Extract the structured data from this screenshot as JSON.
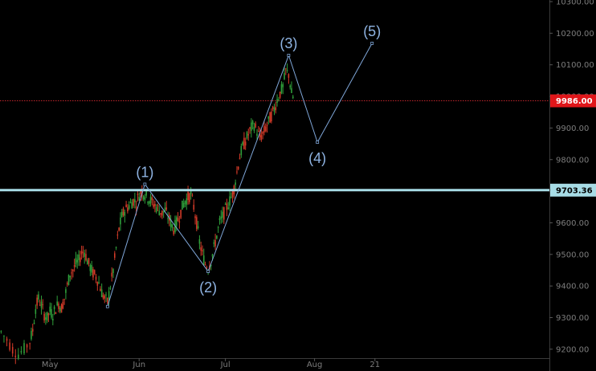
{
  "chart_data": {
    "type": "candlestick",
    "ylim": [
      9180,
      10310
    ],
    "y_ticks": [
      "9200.00",
      "9300.00",
      "9400.00",
      "9500.00",
      "9600.00",
      "9700.00",
      "9800.00",
      "9900.00",
      "10000.00",
      "10100.00",
      "10200.00",
      "10300.00"
    ],
    "x_ticks": [
      {
        "label": "May",
        "day": 3
      },
      {
        "label": "Jun",
        "day": 34
      },
      {
        "label": "Jul",
        "day": 64
      },
      {
        "label": "Aug",
        "day": 95
      },
      {
        "label": "21",
        "day": 116
      }
    ],
    "xlim": [
      -14,
      176
    ],
    "price_tags": [
      {
        "label": "9986.00",
        "value": 9986,
        "color": "#e0161a",
        "text_color": "#ffffff"
      },
      {
        "label": "9703.36",
        "value": 9703.36,
        "color": "#a7dce6",
        "text_color": "#000000"
      }
    ],
    "hlines": [
      {
        "value": 9986,
        "color": "#c0252b",
        "style": "dotted"
      },
      {
        "value": 9703.36,
        "color": "#a7dce6",
        "style": "solid"
      }
    ],
    "wave_points": [
      {
        "label": "",
        "day": 23,
        "price": 9335
      },
      {
        "label": "(1)",
        "day": 36,
        "price": 9722
      },
      {
        "label": "(2)",
        "day": 58,
        "price": 9446
      },
      {
        "label": "(3)",
        "day": 86,
        "price": 10130
      },
      {
        "label": "(4)",
        "day": 96,
        "price": 9855
      },
      {
        "label": "(5)",
        "day": 115,
        "price": 10168
      }
    ],
    "price_path": [
      [
        -14,
        9255
      ],
      [
        -12,
        9230
      ],
      [
        -10,
        9200
      ],
      [
        -8,
        9185
      ],
      [
        -6,
        9200
      ],
      [
        -4,
        9225
      ],
      [
        -3,
        9260
      ],
      [
        -2,
        9330
      ],
      [
        -1,
        9360
      ],
      [
        0,
        9340
      ],
      [
        1,
        9310
      ],
      [
        2,
        9300
      ],
      [
        3,
        9320
      ],
      [
        4,
        9310
      ],
      [
        5,
        9330
      ],
      [
        6,
        9345
      ],
      [
        7,
        9330
      ],
      [
        8,
        9360
      ],
      [
        9,
        9400
      ],
      [
        10,
        9440
      ],
      [
        11,
        9450
      ],
      [
        12,
        9470
      ],
      [
        13,
        9480
      ],
      [
        14,
        9505
      ],
      [
        15,
        9510
      ],
      [
        16,
        9480
      ],
      [
        17,
        9460
      ],
      [
        18,
        9440
      ],
      [
        19,
        9430
      ],
      [
        20,
        9410
      ],
      [
        21,
        9380
      ],
      [
        22,
        9360
      ],
      [
        23,
        9350
      ],
      [
        24,
        9400
      ],
      [
        25,
        9450
      ],
      [
        26,
        9520
      ],
      [
        27,
        9580
      ],
      [
        28,
        9620
      ],
      [
        29,
        9640
      ],
      [
        30,
        9650
      ],
      [
        31,
        9660
      ],
      [
        32,
        9670
      ],
      [
        33,
        9665
      ],
      [
        34,
        9690
      ],
      [
        35,
        9700
      ],
      [
        36,
        9690
      ],
      [
        37,
        9680
      ],
      [
        38,
        9670
      ],
      [
        39,
        9660
      ],
      [
        40,
        9650
      ],
      [
        41,
        9640
      ],
      [
        42,
        9630
      ],
      [
        43,
        9640
      ],
      [
        44,
        9620
      ],
      [
        45,
        9600
      ],
      [
        46,
        9580
      ],
      [
        47,
        9600
      ],
      [
        48,
        9620
      ],
      [
        49,
        9650
      ],
      [
        50,
        9670
      ],
      [
        51,
        9680
      ],
      [
        52,
        9690
      ],
      [
        53,
        9650
      ],
      [
        54,
        9600
      ],
      [
        55,
        9540
      ],
      [
        56,
        9500
      ],
      [
        57,
        9470
      ],
      [
        58,
        9460
      ],
      [
        59,
        9480
      ],
      [
        60,
        9520
      ],
      [
        61,
        9560
      ],
      [
        62,
        9600
      ],
      [
        63,
        9620
      ],
      [
        64,
        9640
      ],
      [
        65,
        9660
      ],
      [
        66,
        9680
      ],
      [
        67,
        9710
      ],
      [
        68,
        9760
      ],
      [
        69,
        9810
      ],
      [
        70,
        9840
      ],
      [
        71,
        9860
      ],
      [
        72,
        9880
      ],
      [
        73,
        9900
      ],
      [
        74,
        9910
      ],
      [
        75,
        9890
      ],
      [
        76,
        9870
      ],
      [
        77,
        9880
      ],
      [
        78,
        9900
      ],
      [
        79,
        9920
      ],
      [
        80,
        9940
      ],
      [
        81,
        9960
      ],
      [
        82,
        9990
      ],
      [
        83,
        10010
      ],
      [
        84,
        10030
      ],
      [
        85,
        10080
      ],
      [
        86,
        10070
      ],
      [
        87,
        10010
      ],
      [
        88,
        9986
      ]
    ]
  }
}
